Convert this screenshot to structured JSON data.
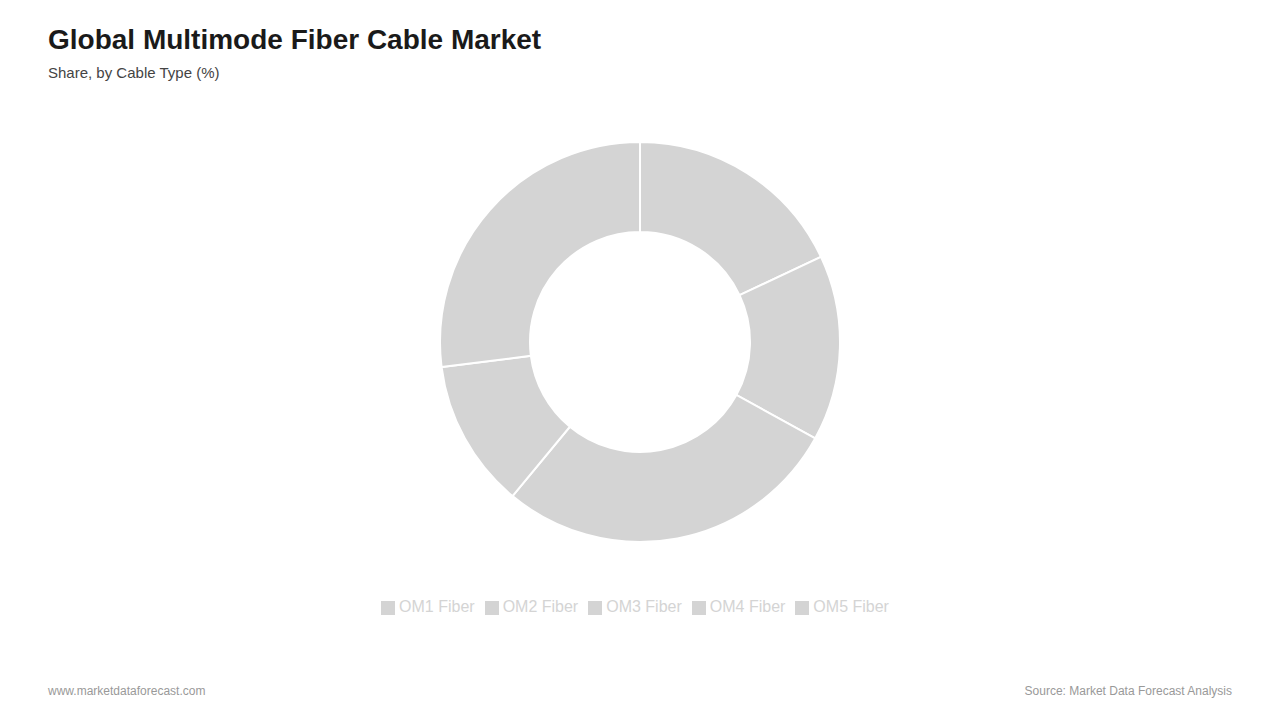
{
  "chart_data": {
    "type": "pie",
    "title": "Global Multimode Fiber Cable Market",
    "subtitle": "Share, by Cable Type (%)",
    "categories": [
      "OM1 Fiber",
      "OM2 Fiber",
      "OM3 Fiber",
      "OM4 Fiber",
      "OM5 Fiber"
    ],
    "values": [
      18,
      15,
      28,
      12,
      27
    ],
    "colors": [
      "#d4d4d4",
      "#d4d4d4",
      "#d4d4d4",
      "#d4d4d4",
      "#d4d4d4"
    ],
    "legend": "bottom",
    "annotations": [
      "www.marketdataforecast.com",
      "Source: Market Data Forecast Analysis"
    ]
  }
}
